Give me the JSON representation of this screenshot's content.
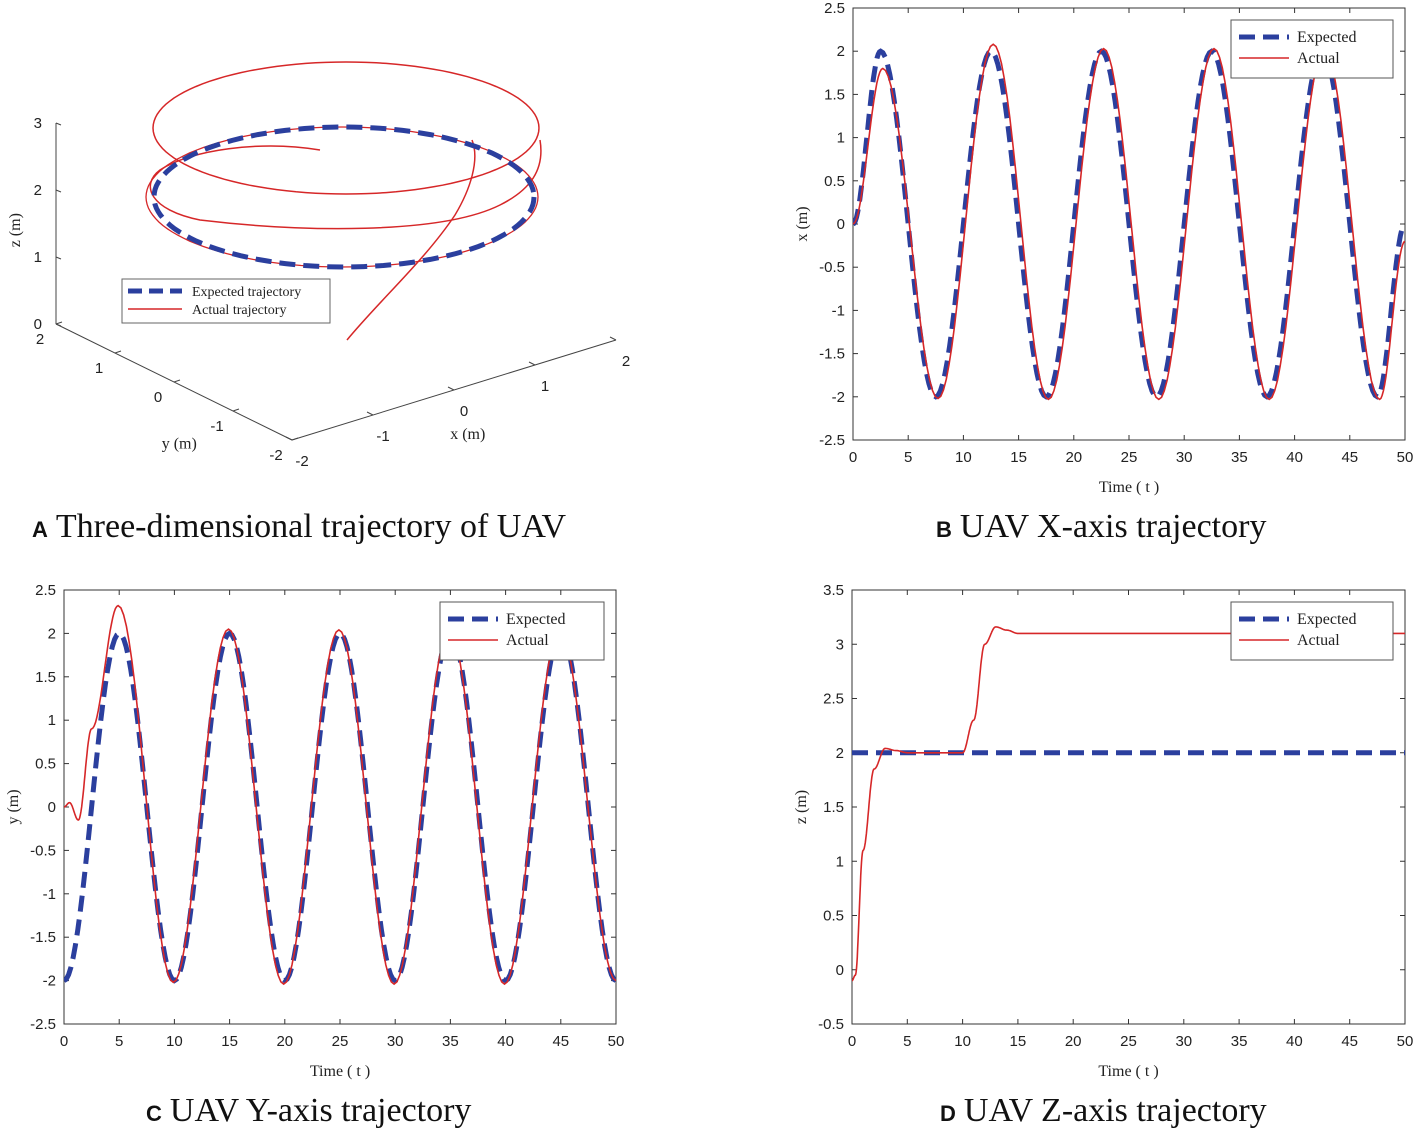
{
  "panels": [
    {
      "letter": "A",
      "caption": "Three-dimensional trajectory of UAV",
      "chart_data": {
        "type": "line",
        "projection": "3d",
        "xlabel": "x (m)",
        "ylabel": "y (m)",
        "zlabel": "z (m)",
        "xticks": [
          "-2",
          "-1",
          "0",
          "1",
          "2"
        ],
        "yticks": [
          "-2",
          "-1",
          "0",
          "1",
          "2"
        ],
        "zticks": [
          "0",
          "1",
          "2",
          "3"
        ],
        "legend": "lower-left",
        "series": [
          {
            "name": "Expected trajectory",
            "color": "#2b3f9e",
            "style": "dashed",
            "description_points": [
              [
                2,
                0,
                2
              ],
              [
                0,
                2,
                2
              ],
              [
                -2,
                0,
                2
              ],
              [
                0,
                -2,
                2
              ]
            ]
          },
          {
            "name": "Actual trajectory",
            "color": "#d62728",
            "style": "solid",
            "description_points": [
              [
                0,
                0,
                0
              ],
              [
                2,
                0,
                2
              ],
              [
                2,
                0,
                3.1
              ],
              [
                0,
                2,
                3.1
              ],
              [
                -2,
                0,
                3.1
              ],
              [
                0,
                -2,
                3.1
              ]
            ]
          }
        ]
      }
    },
    {
      "letter": "B",
      "caption": "UAV X-axis trajectory",
      "chart_data": {
        "type": "line",
        "xlabel": "Time ( t )",
        "ylabel": "x (m)",
        "xlim": [
          0,
          50
        ],
        "ylim": [
          -2.5,
          2.5
        ],
        "xticks": [
          0,
          5,
          10,
          15,
          20,
          25,
          30,
          35,
          40,
          45,
          50
        ],
        "yticks": [
          -2.5,
          -2,
          -1.5,
          -1,
          -0.5,
          0,
          0.5,
          1,
          1.5,
          2,
          2.5
        ],
        "legend": "top-right",
        "series": [
          {
            "name": "Expected",
            "color": "#2b3f9e",
            "style": "dashed",
            "t": [
              0,
              2.5,
              7.5,
              12.5,
              17.5,
              22.5,
              27.5,
              32.5,
              37.5,
              42.5,
              47.5,
              50
            ],
            "values": [
              0,
              2,
              -2,
              2,
              -2,
              2,
              -2,
              2,
              -2,
              2,
              -2,
              0
            ]
          },
          {
            "name": "Actual",
            "color": "#d62728",
            "style": "solid",
            "t": [
              0,
              2.7,
              7.7,
              12.7,
              17.7,
              22.7,
              27.7,
              32.7,
              37.7,
              42.7,
              47.7,
              50
            ],
            "values": [
              0,
              1.8,
              -2.02,
              2.08,
              -2.03,
              2.03,
              -2.03,
              2.03,
              -2.03,
              2.03,
              -2.03,
              -0.2
            ]
          }
        ]
      }
    },
    {
      "letter": "C",
      "caption": "UAV Y-axis trajectory",
      "chart_data": {
        "type": "line",
        "xlabel": "Time ( t )",
        "ylabel": "y (m)",
        "xlim": [
          0,
          50
        ],
        "ylim": [
          -2.5,
          2.5
        ],
        "xticks": [
          0,
          5,
          10,
          15,
          20,
          25,
          30,
          35,
          40,
          45,
          50
        ],
        "yticks": [
          -2.5,
          -2,
          -1.5,
          -1,
          -0.5,
          0,
          0.5,
          1,
          1.5,
          2,
          2.5
        ],
        "legend": "top-right",
        "series": [
          {
            "name": "Expected",
            "color": "#2b3f9e",
            "style": "dashed",
            "t": [
              0,
              5,
              10,
              15,
              20,
              25,
              30,
              35,
              40,
              45,
              50
            ],
            "values": [
              -2,
              2,
              -2,
              2,
              -2,
              2,
              -2,
              2,
              -2,
              2,
              -2
            ]
          },
          {
            "name": "Actual",
            "color": "#d62728",
            "style": "solid",
            "t": [
              0,
              0.5,
              1.3,
              2.5,
              4.9,
              9.9,
              14.9,
              19.9,
              24.9,
              29.9,
              34.9,
              39.9,
              44.9,
              50
            ],
            "values": [
              0,
              0.05,
              -0.15,
              0.9,
              2.32,
              -2.02,
              2.05,
              -2.04,
              2.04,
              -2.04,
              2.04,
              -2.04,
              2.04,
              -2
            ]
          }
        ]
      }
    },
    {
      "letter": "D",
      "caption": "UAV Z-axis trajectory",
      "chart_data": {
        "type": "line",
        "xlabel": "Time ( t )",
        "ylabel": "z (m)",
        "xlim": [
          0,
          50
        ],
        "ylim": [
          -0.5,
          3.5
        ],
        "xticks": [
          0,
          5,
          10,
          15,
          20,
          25,
          30,
          35,
          40,
          45,
          50
        ],
        "yticks": [
          -0.5,
          0,
          0.5,
          1,
          1.5,
          2,
          2.5,
          3,
          3.5
        ],
        "legend": "top-right",
        "series": [
          {
            "name": "Expected",
            "color": "#2b3f9e",
            "style": "dashed",
            "t": [
              0,
              50
            ],
            "values": [
              2,
              2
            ]
          },
          {
            "name": "Actual",
            "color": "#d62728",
            "style": "solid",
            "t": [
              0,
              0.3,
              1,
              2,
              3,
              4,
              5,
              10,
              11,
              12,
              13,
              14,
              15,
              50
            ],
            "values": [
              -0.1,
              -0.05,
              1.1,
              1.85,
              2.04,
              2.02,
              2,
              2,
              2.3,
              3,
              3.16,
              3.13,
              3.1,
              3.1
            ]
          }
        ]
      }
    }
  ]
}
